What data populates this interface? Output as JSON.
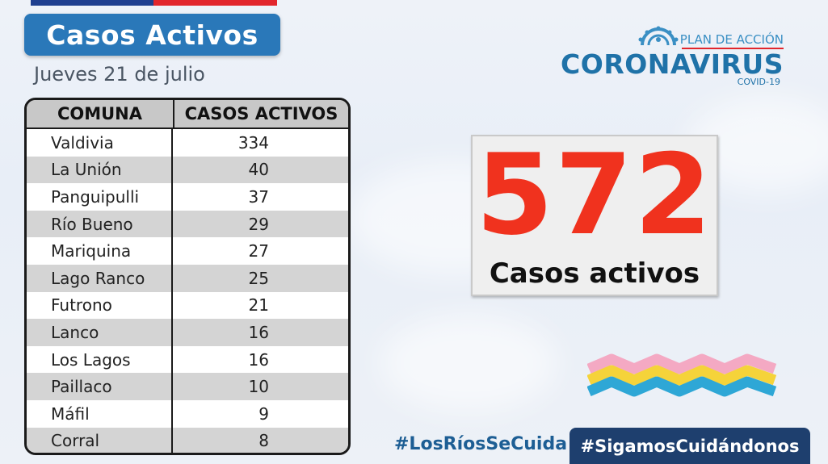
{
  "title": "Casos Activos",
  "date": "Jueves 21 de julio",
  "table": {
    "headers": [
      "COMUNA",
      "CASOS ACTIVOS"
    ],
    "rows": [
      {
        "comuna": "Valdivia",
        "casos": "334"
      },
      {
        "comuna": "La Unión",
        "casos": "40"
      },
      {
        "comuna": "Panguipulli",
        "casos": "37"
      },
      {
        "comuna": "Río Bueno",
        "casos": "29"
      },
      {
        "comuna": "Mariquina",
        "casos": "27"
      },
      {
        "comuna": "Lago Ranco",
        "casos": "25"
      },
      {
        "comuna": "Futrono",
        "casos": "21"
      },
      {
        "comuna": "Lanco",
        "casos": "16"
      },
      {
        "comuna": "Los Lagos",
        "casos": "16"
      },
      {
        "comuna": "Paillaco",
        "casos": "10"
      },
      {
        "comuna": "Máfil",
        "casos": "9"
      },
      {
        "comuna": "Corral",
        "casos": "8"
      }
    ]
  },
  "logo": {
    "plan": "PLAN DE ACCIÓN",
    "main": "CORONAVIRUS",
    "sub": "COVID-19"
  },
  "total": {
    "value": "572",
    "label": "Casos activos"
  },
  "hashtags": {
    "left": "#LosRíosSeCuida",
    "right": "#SigamosCuidándonos"
  },
  "colors": {
    "title_bg": "#2a78b9",
    "total_number": "#f0321e",
    "hashtag_right_bg": "#1e3f6e",
    "logo_blue": "#1f72a8"
  }
}
